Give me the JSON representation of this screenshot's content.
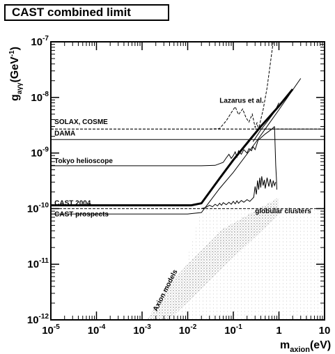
{
  "chart_data": {
    "type": "line",
    "title": "CAST combined limit",
    "x_scale": "log",
    "y_scale": "log",
    "xlim": [
      1e-05,
      10
    ],
    "ylim": [
      1e-12,
      1e-07
    ],
    "x_ticks": [
      {
        "value": 1e-05,
        "base": "10",
        "exp": "-5"
      },
      {
        "value": 0.0001,
        "base": "10",
        "exp": "-4"
      },
      {
        "value": 0.001,
        "base": "10",
        "exp": "-3"
      },
      {
        "value": 0.01,
        "base": "10",
        "exp": "-2"
      },
      {
        "value": 0.1,
        "base": "10",
        "exp": "-1"
      },
      {
        "value": 1,
        "base": "1",
        "exp": ""
      },
      {
        "value": 10,
        "base": "10",
        "exp": ""
      }
    ],
    "y_ticks": [
      {
        "value": 1e-07,
        "base": "10",
        "exp": "-7"
      },
      {
        "value": 1e-08,
        "base": "10",
        "exp": "-8"
      },
      {
        "value": 1e-09,
        "base": "10",
        "exp": "-9"
      },
      {
        "value": 1e-10,
        "base": "10",
        "exp": "-10"
      },
      {
        "value": 1e-11,
        "base": "10",
        "exp": "-11"
      },
      {
        "value": 1e-12,
        "base": "10",
        "exp": "-12"
      }
    ],
    "xlabel": {
      "main": "m",
      "sub": "axion",
      "unit": "(eV)"
    },
    "ylabel": {
      "main": "g",
      "sub": "aγγ",
      "unit": "(GeV",
      "sup": "-1",
      "close": ")"
    },
    "annotations": [
      {
        "id": "solax",
        "text": "SOLAX, COSME",
        "x": 1.2e-05,
        "y": 3.3e-09
      },
      {
        "id": "dama",
        "text": "DAMA",
        "x": 1.2e-05,
        "y": 2.05e-09
      },
      {
        "id": "tokyo",
        "text": "Tokyo helioscope",
        "x": 1.2e-05,
        "y": 6.6e-10
      },
      {
        "id": "lazarus",
        "text": "Lazarus et al.",
        "x": 0.05,
        "y": 8e-09
      },
      {
        "id": "cast2004",
        "text": "CAST 2004",
        "x": 1.2e-05,
        "y": 1.15e-10
      },
      {
        "id": "prospects",
        "text": "CAST prospects",
        "x": 1.2e-05,
        "y": 7.3e-11
      },
      {
        "id": "globular",
        "text": "globular clusters",
        "x": 0.3,
        "y": 8.3e-11
      },
      {
        "id": "axion_models",
        "text": "Axion models",
        "x": 0.0021,
        "y": 1.4e-12,
        "rotate": -63
      }
    ],
    "series": [
      {
        "id": "solax_line",
        "style": "dashed",
        "width": 1.2,
        "x": [
          1e-05,
          10
        ],
        "y": [
          2.7e-09,
          2.7e-09
        ]
      },
      {
        "id": "solax_upper",
        "style": "solid",
        "width": 0.8,
        "x": [
          0.3,
          10
        ],
        "y": [
          2.7e-09,
          2.7e-09
        ]
      },
      {
        "id": "dama_line",
        "style": "solid",
        "width": 1,
        "x": [
          1e-05,
          10
        ],
        "y": [
          1.75e-09,
          1.75e-09
        ]
      },
      {
        "id": "globular_line",
        "style": "dashed",
        "width": 1,
        "x": [
          1e-05,
          10
        ],
        "y": [
          1e-10,
          1e-10
        ]
      },
      {
        "id": "tokyo_line",
        "style": "solid",
        "width": 1,
        "x": [
          1e-05,
          0.02,
          0.04,
          0.06,
          0.07,
          0.08,
          0.09,
          0.1,
          0.11,
          0.12,
          0.13,
          0.15,
          0.17,
          0.2,
          0.22,
          0.25,
          0.27,
          0.3,
          0.35,
          0.5,
          0.7,
          0.8
        ],
        "y": [
          5.9e-10,
          5.9e-10,
          6e-10,
          6.8e-10,
          8.2e-10,
          9.5e-10,
          8e-10,
          9e-10,
          1.05e-09,
          8.5e-10,
          1.1e-09,
          9.5e-10,
          1.15e-09,
          1e-09,
          1.2e-09,
          1.1e-09,
          1.3e-09,
          1.15e-09,
          1.7e-09,
          2.2e-09,
          2.7e-09,
          3e-09
        ]
      },
      {
        "id": "tokyo_vertical",
        "style": "solid",
        "width": 1,
        "x": [
          0.8,
          0.82,
          0.85,
          0.88,
          0.9
        ],
        "y": [
          3e-09,
          1.5e-09,
          6e-10,
          3.5e-10,
          2.2e-10
        ]
      },
      {
        "id": "tokyo_upper",
        "style": "solid",
        "width": 1,
        "x": [
          0.27,
          0.4,
          0.6,
          0.8,
          1.0
        ],
        "y": [
          1.6e-09,
          2.6e-09,
          4e-09,
          5.5e-09,
          8e-09
        ]
      },
      {
        "id": "lazarus_line",
        "style": "dashed",
        "width": 1,
        "x": [
          0.03,
          0.05,
          0.07,
          0.09,
          0.11,
          0.13,
          0.16,
          0.19,
          0.22,
          0.26,
          0.3,
          0.33,
          0.36,
          0.4,
          0.45,
          0.55,
          0.75
        ],
        "y": [
          2.7e-09,
          2.75e-09,
          3.8e-09,
          5.3e-09,
          6.8e-09,
          4.9e-09,
          6.2e-09,
          4.3e-09,
          3.6e-09,
          5e-09,
          2.9e-09,
          3.5e-09,
          2.6e-09,
          4e-09,
          6e-09,
          1.5e-08,
          1e-07
        ]
      },
      {
        "id": "cast_noisy",
        "style": "solid",
        "width": 1,
        "x": [
          0.02,
          0.025,
          0.03,
          0.035,
          0.04,
          0.045,
          0.05,
          0.055,
          0.06,
          0.07,
          0.08,
          0.09,
          0.1,
          0.11,
          0.12,
          0.13,
          0.15,
          0.17,
          0.2,
          0.23,
          0.26,
          0.28,
          0.3,
          0.32,
          0.34,
          0.36,
          0.38,
          0.4,
          0.42,
          0.45,
          0.48,
          0.5,
          0.55,
          0.6,
          0.65,
          0.7,
          0.75,
          0.8,
          0.85
        ],
        "y": [
          1e-10,
          1.05e-10,
          1.15e-10,
          1.08e-10,
          1.2e-10,
          1.12e-10,
          1.25e-10,
          1.15e-10,
          1.28e-10,
          1.18e-10,
          1.3e-10,
          1.2e-10,
          1.35e-10,
          1.22e-10,
          1.38e-10,
          1.25e-10,
          1.4e-10,
          1.3e-10,
          1.45e-10,
          1.35e-10,
          1.5e-10,
          1.6e-10,
          2.5e-10,
          1.8e-10,
          3.2e-10,
          2.2e-10,
          3.6e-10,
          2.4e-10,
          3.8e-10,
          2.6e-10,
          3.3e-10,
          2.3e-10,
          3.6e-10,
          2.5e-10,
          3.4e-10,
          2.4e-10,
          3.2e-10,
          2.6e-10,
          3e-10
        ]
      },
      {
        "id": "cast_2004_line",
        "style": "solid",
        "width": 3,
        "x": [
          1e-05,
          0.012,
          0.02,
          0.05,
          0.1,
          0.2,
          0.4,
          1.0,
          2.0
        ],
        "y": [
          1.15e-10,
          1.15e-10,
          1.25e-10,
          3.5e-10,
          7.5e-10,
          1.5e-09,
          3e-09,
          7e-09,
          1.4e-08
        ]
      },
      {
        "id": "cast_prospects_line",
        "style": "solid",
        "width": 1,
        "x": [
          1e-05,
          0.01,
          0.02,
          0.05,
          0.1,
          0.3,
          1.0,
          3.0
        ],
        "y": [
          8e-11,
          8e-11,
          8.5e-11,
          2.3e-10,
          4.5e-10,
          1.5e-09,
          6e-09,
          2.2e-08
        ]
      }
    ],
    "regions": [
      {
        "id": "axion_band",
        "fill": "#c8c8c8",
        "points": [
          [
            0.0013,
            1e-12
          ],
          [
            0.0039,
            1e-12
          ],
          [
            1.0,
            8e-11
          ],
          [
            1.0,
            1.6e-10
          ],
          [
            0.05,
            4e-11
          ],
          [
            0.0035,
            4e-12
          ],
          [
            0.0013,
            1e-12
          ]
        ]
      },
      {
        "id": "dama_region",
        "fill": "#dcdcdc",
        "points": [
          [
            1e-05,
            1.6e-09
          ],
          [
            10,
            1.6e-09
          ],
          [
            10,
            1.5e-09
          ],
          [
            1e-05,
            1.5e-09
          ]
        ]
      }
    ]
  }
}
